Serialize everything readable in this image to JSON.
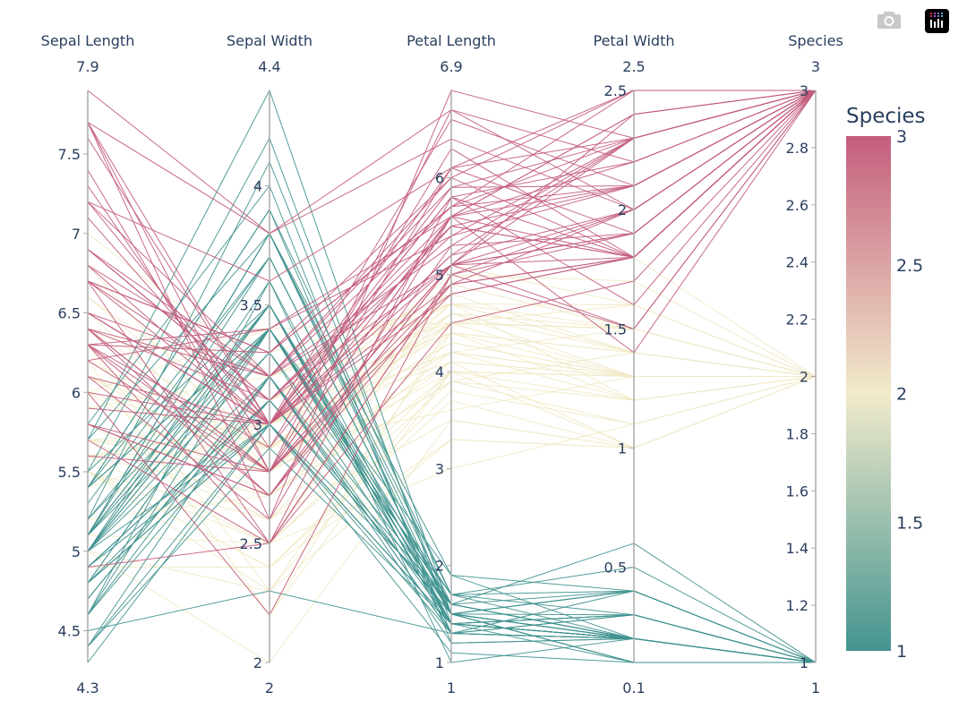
{
  "modebar": {
    "icons": [
      "camera-icon",
      "plotly-logo-icon"
    ]
  },
  "chart_data": {
    "type": "parallel_coordinates",
    "colorscale": {
      "name": "tealrose",
      "stops": [
        "#3f928f",
        "#f1eac8",
        "#c35b7b"
      ],
      "cmin": 1,
      "cmax": 3
    },
    "colorbar": {
      "title": "Species",
      "ticks": [
        1,
        1.5,
        2,
        2.5,
        3
      ],
      "tick_labels": [
        "1",
        "1.5",
        "2",
        "2.5",
        "3"
      ]
    },
    "color_dimension": "Species",
    "dimensions": [
      {
        "label": "Sepal Length",
        "range": [
          4.3,
          7.9
        ],
        "range_labels": [
          "4.3",
          "7.9"
        ],
        "ticks": [
          4.5,
          5,
          5.5,
          6,
          6.5,
          7,
          7.5
        ],
        "tick_labels": [
          "4.5",
          "5",
          "5.5",
          "6",
          "6.5",
          "7",
          "7.5"
        ]
      },
      {
        "label": "Sepal Width",
        "range": [
          2,
          4.4
        ],
        "range_labels": [
          "2",
          "4.4"
        ],
        "ticks": [
          2,
          2.5,
          3,
          3.5,
          4
        ],
        "tick_labels": [
          "2",
          "2.5",
          "3",
          "3.5",
          "4"
        ]
      },
      {
        "label": "Petal Length",
        "range": [
          1,
          6.9
        ],
        "range_labels": [
          "1",
          "6.9"
        ],
        "ticks": [
          1,
          2,
          3,
          4,
          5,
          6
        ],
        "tick_labels": [
          "1",
          "2",
          "3",
          "4",
          "5",
          "6"
        ]
      },
      {
        "label": "Petal Width",
        "range": [
          0.1,
          2.5
        ],
        "range_labels": [
          "0.1",
          "2.5"
        ],
        "ticks": [
          0.5,
          1,
          1.5,
          2,
          2.5
        ],
        "tick_labels": [
          "0.5",
          "1",
          "1.5",
          "2",
          "2.5"
        ]
      },
      {
        "label": "Species",
        "range": [
          1,
          3
        ],
        "range_labels": [
          "1",
          "3"
        ],
        "ticks": [
          1,
          1.2,
          1.4,
          1.6,
          1.8,
          2,
          2.2,
          2.4,
          2.6,
          2.8,
          3
        ],
        "tick_labels": [
          "1",
          "1.2",
          "1.4",
          "1.6",
          "1.8",
          "2",
          "2.2",
          "2.4",
          "2.6",
          "2.8",
          "3"
        ]
      }
    ],
    "rows": [
      [
        5.1,
        3.5,
        1.4,
        0.2,
        1
      ],
      [
        4.9,
        3.0,
        1.4,
        0.2,
        1
      ],
      [
        4.7,
        3.2,
        1.3,
        0.2,
        1
      ],
      [
        4.6,
        3.1,
        1.5,
        0.2,
        1
      ],
      [
        5.0,
        3.6,
        1.4,
        0.2,
        1
      ],
      [
        5.4,
        3.9,
        1.7,
        0.4,
        1
      ],
      [
        4.6,
        3.4,
        1.4,
        0.3,
        1
      ],
      [
        5.0,
        3.4,
        1.5,
        0.2,
        1
      ],
      [
        4.4,
        2.9,
        1.4,
        0.2,
        1
      ],
      [
        4.9,
        3.1,
        1.5,
        0.1,
        1
      ],
      [
        5.4,
        3.7,
        1.5,
        0.2,
        1
      ],
      [
        4.8,
        3.4,
        1.6,
        0.2,
        1
      ],
      [
        4.8,
        3.0,
        1.4,
        0.1,
        1
      ],
      [
        4.3,
        3.0,
        1.1,
        0.1,
        1
      ],
      [
        5.8,
        4.0,
        1.2,
        0.2,
        1
      ],
      [
        5.7,
        4.4,
        1.5,
        0.4,
        1
      ],
      [
        5.4,
        3.9,
        1.3,
        0.4,
        1
      ],
      [
        5.1,
        3.5,
        1.4,
        0.3,
        1
      ],
      [
        5.7,
        3.8,
        1.7,
        0.3,
        1
      ],
      [
        5.1,
        3.8,
        1.5,
        0.3,
        1
      ],
      [
        5.4,
        3.4,
        1.7,
        0.2,
        1
      ],
      [
        5.1,
        3.7,
        1.5,
        0.4,
        1
      ],
      [
        4.6,
        3.6,
        1.0,
        0.2,
        1
      ],
      [
        5.1,
        3.3,
        1.7,
        0.5,
        1
      ],
      [
        4.8,
        3.4,
        1.9,
        0.2,
        1
      ],
      [
        5.0,
        3.0,
        1.6,
        0.2,
        1
      ],
      [
        5.0,
        3.4,
        1.6,
        0.4,
        1
      ],
      [
        5.2,
        3.5,
        1.5,
        0.2,
        1
      ],
      [
        5.2,
        3.4,
        1.4,
        0.2,
        1
      ],
      [
        4.7,
        3.2,
        1.6,
        0.2,
        1
      ],
      [
        4.8,
        3.1,
        1.6,
        0.2,
        1
      ],
      [
        5.4,
        3.4,
        1.5,
        0.4,
        1
      ],
      [
        5.2,
        4.1,
        1.5,
        0.1,
        1
      ],
      [
        5.5,
        4.2,
        1.4,
        0.2,
        1
      ],
      [
        4.9,
        3.1,
        1.5,
        0.1,
        1
      ],
      [
        5.0,
        3.2,
        1.2,
        0.2,
        1
      ],
      [
        5.5,
        3.5,
        1.3,
        0.2,
        1
      ],
      [
        4.9,
        3.1,
        1.5,
        0.1,
        1
      ],
      [
        4.4,
        3.0,
        1.3,
        0.2,
        1
      ],
      [
        5.1,
        3.4,
        1.5,
        0.2,
        1
      ],
      [
        5.0,
        3.5,
        1.3,
        0.3,
        1
      ],
      [
        4.5,
        2.3,
        1.3,
        0.3,
        1
      ],
      [
        4.4,
        3.2,
        1.3,
        0.2,
        1
      ],
      [
        5.0,
        3.5,
        1.6,
        0.6,
        1
      ],
      [
        5.1,
        3.8,
        1.9,
        0.4,
        1
      ],
      [
        4.8,
        3.0,
        1.4,
        0.3,
        1
      ],
      [
        5.1,
        3.8,
        1.6,
        0.2,
        1
      ],
      [
        4.6,
        3.2,
        1.4,
        0.2,
        1
      ],
      [
        5.3,
        3.7,
        1.5,
        0.2,
        1
      ],
      [
        5.0,
        3.3,
        1.4,
        0.2,
        1
      ],
      [
        7.0,
        3.2,
        4.7,
        1.4,
        2
      ],
      [
        6.4,
        3.2,
        4.5,
        1.5,
        2
      ],
      [
        6.9,
        3.1,
        4.9,
        1.5,
        2
      ],
      [
        5.5,
        2.3,
        4.0,
        1.3,
        2
      ],
      [
        6.5,
        2.8,
        4.6,
        1.5,
        2
      ],
      [
        5.7,
        2.8,
        4.5,
        1.3,
        2
      ],
      [
        6.3,
        3.3,
        4.7,
        1.6,
        2
      ],
      [
        4.9,
        2.4,
        3.3,
        1.0,
        2
      ],
      [
        6.6,
        2.9,
        4.6,
        1.3,
        2
      ],
      [
        5.2,
        2.7,
        3.9,
        1.4,
        2
      ],
      [
        5.0,
        2.0,
        3.5,
        1.0,
        2
      ],
      [
        5.9,
        3.0,
        4.2,
        1.5,
        2
      ],
      [
        6.0,
        2.2,
        4.0,
        1.0,
        2
      ],
      [
        6.1,
        2.9,
        4.7,
        1.4,
        2
      ],
      [
        5.6,
        2.9,
        3.6,
        1.3,
        2
      ],
      [
        6.7,
        3.1,
        4.4,
        1.4,
        2
      ],
      [
        5.6,
        3.0,
        4.5,
        1.5,
        2
      ],
      [
        5.8,
        2.7,
        4.1,
        1.0,
        2
      ],
      [
        6.2,
        2.2,
        4.5,
        1.5,
        2
      ],
      [
        5.6,
        2.5,
        3.9,
        1.1,
        2
      ],
      [
        5.9,
        3.2,
        4.8,
        1.8,
        2
      ],
      [
        6.1,
        2.8,
        4.0,
        1.3,
        2
      ],
      [
        6.3,
        2.5,
        4.9,
        1.5,
        2
      ],
      [
        6.1,
        2.8,
        4.7,
        1.2,
        2
      ],
      [
        6.4,
        2.9,
        4.3,
        1.3,
        2
      ],
      [
        6.6,
        3.0,
        4.4,
        1.4,
        2
      ],
      [
        6.8,
        2.8,
        4.8,
        1.4,
        2
      ],
      [
        6.7,
        3.0,
        5.0,
        1.7,
        2
      ],
      [
        6.0,
        2.9,
        4.5,
        1.5,
        2
      ],
      [
        5.7,
        2.6,
        3.5,
        1.0,
        2
      ],
      [
        5.5,
        2.4,
        3.8,
        1.1,
        2
      ],
      [
        5.5,
        2.4,
        3.7,
        1.0,
        2
      ],
      [
        5.8,
        2.7,
        3.9,
        1.2,
        2
      ],
      [
        6.0,
        2.7,
        5.1,
        1.6,
        2
      ],
      [
        5.4,
        3.0,
        4.5,
        1.5,
        2
      ],
      [
        6.0,
        3.4,
        4.5,
        1.6,
        2
      ],
      [
        6.7,
        3.1,
        4.7,
        1.5,
        2
      ],
      [
        6.3,
        2.3,
        4.4,
        1.3,
        2
      ],
      [
        5.6,
        3.0,
        4.1,
        1.3,
        2
      ],
      [
        5.5,
        2.5,
        4.0,
        1.3,
        2
      ],
      [
        5.5,
        2.6,
        4.4,
        1.2,
        2
      ],
      [
        6.1,
        3.0,
        4.6,
        1.4,
        2
      ],
      [
        5.8,
        2.6,
        4.0,
        1.2,
        2
      ],
      [
        5.0,
        2.3,
        3.3,
        1.0,
        2
      ],
      [
        5.6,
        2.7,
        4.2,
        1.3,
        2
      ],
      [
        5.7,
        3.0,
        4.2,
        1.2,
        2
      ],
      [
        5.7,
        2.9,
        4.2,
        1.3,
        2
      ],
      [
        6.2,
        2.9,
        4.3,
        1.3,
        2
      ],
      [
        5.1,
        2.5,
        3.0,
        1.1,
        2
      ],
      [
        5.7,
        2.8,
        4.1,
        1.3,
        2
      ],
      [
        6.3,
        3.3,
        6.0,
        2.5,
        3
      ],
      [
        5.8,
        2.7,
        5.1,
        1.9,
        3
      ],
      [
        7.1,
        3.0,
        5.9,
        2.1,
        3
      ],
      [
        6.3,
        2.9,
        5.6,
        1.8,
        3
      ],
      [
        6.5,
        3.0,
        5.8,
        2.2,
        3
      ],
      [
        7.6,
        3.0,
        6.6,
        2.1,
        3
      ],
      [
        4.9,
        2.5,
        4.5,
        1.7,
        3
      ],
      [
        7.3,
        2.9,
        6.3,
        1.8,
        3
      ],
      [
        6.7,
        2.5,
        5.8,
        1.8,
        3
      ],
      [
        7.2,
        3.6,
        6.1,
        2.5,
        3
      ],
      [
        6.5,
        3.2,
        5.1,
        2.0,
        3
      ],
      [
        6.4,
        2.7,
        5.3,
        1.9,
        3
      ],
      [
        6.8,
        3.0,
        5.5,
        2.1,
        3
      ],
      [
        5.7,
        2.5,
        5.0,
        2.0,
        3
      ],
      [
        5.8,
        2.8,
        5.1,
        2.4,
        3
      ],
      [
        6.4,
        3.2,
        5.3,
        2.3,
        3
      ],
      [
        6.5,
        3.0,
        5.5,
        1.8,
        3
      ],
      [
        7.7,
        3.8,
        6.7,
        2.2,
        3
      ],
      [
        7.7,
        2.6,
        6.9,
        2.3,
        3
      ],
      [
        6.0,
        2.2,
        5.0,
        1.5,
        3
      ],
      [
        6.9,
        3.2,
        5.7,
        2.3,
        3
      ],
      [
        5.6,
        2.8,
        4.9,
        2.0,
        3
      ],
      [
        7.7,
        2.8,
        6.7,
        2.0,
        3
      ],
      [
        6.3,
        2.7,
        4.9,
        1.8,
        3
      ],
      [
        6.7,
        3.3,
        5.7,
        2.1,
        3
      ],
      [
        7.2,
        3.2,
        6.0,
        1.8,
        3
      ],
      [
        6.2,
        2.8,
        4.8,
        1.8,
        3
      ],
      [
        6.1,
        3.0,
        4.9,
        1.8,
        3
      ],
      [
        6.4,
        2.8,
        5.6,
        2.1,
        3
      ],
      [
        7.2,
        3.0,
        5.8,
        1.6,
        3
      ],
      [
        7.4,
        2.8,
        6.1,
        1.9,
        3
      ],
      [
        7.9,
        3.8,
        6.4,
        2.0,
        3
      ],
      [
        6.4,
        2.8,
        5.6,
        2.2,
        3
      ],
      [
        6.3,
        2.8,
        5.1,
        1.5,
        3
      ],
      [
        6.1,
        2.6,
        5.6,
        1.4,
        3
      ],
      [
        7.7,
        3.0,
        6.1,
        2.3,
        3
      ],
      [
        6.3,
        3.4,
        5.6,
        2.4,
        3
      ],
      [
        6.4,
        3.1,
        5.5,
        1.8,
        3
      ],
      [
        6.0,
        3.0,
        4.8,
        1.8,
        3
      ],
      [
        6.9,
        3.1,
        5.4,
        2.1,
        3
      ],
      [
        6.7,
        3.1,
        5.6,
        2.4,
        3
      ],
      [
        6.9,
        3.1,
        5.1,
        2.3,
        3
      ],
      [
        5.8,
        2.7,
        5.1,
        1.9,
        3
      ],
      [
        6.8,
        3.2,
        5.9,
        2.3,
        3
      ],
      [
        6.7,
        3.3,
        5.7,
        2.5,
        3
      ],
      [
        6.7,
        3.0,
        5.2,
        2.3,
        3
      ],
      [
        6.3,
        2.5,
        5.0,
        1.9,
        3
      ],
      [
        6.5,
        3.0,
        5.2,
        2.0,
        3
      ],
      [
        6.2,
        3.4,
        5.4,
        2.3,
        3
      ],
      [
        5.9,
        3.0,
        5.1,
        1.8,
        3
      ]
    ]
  }
}
